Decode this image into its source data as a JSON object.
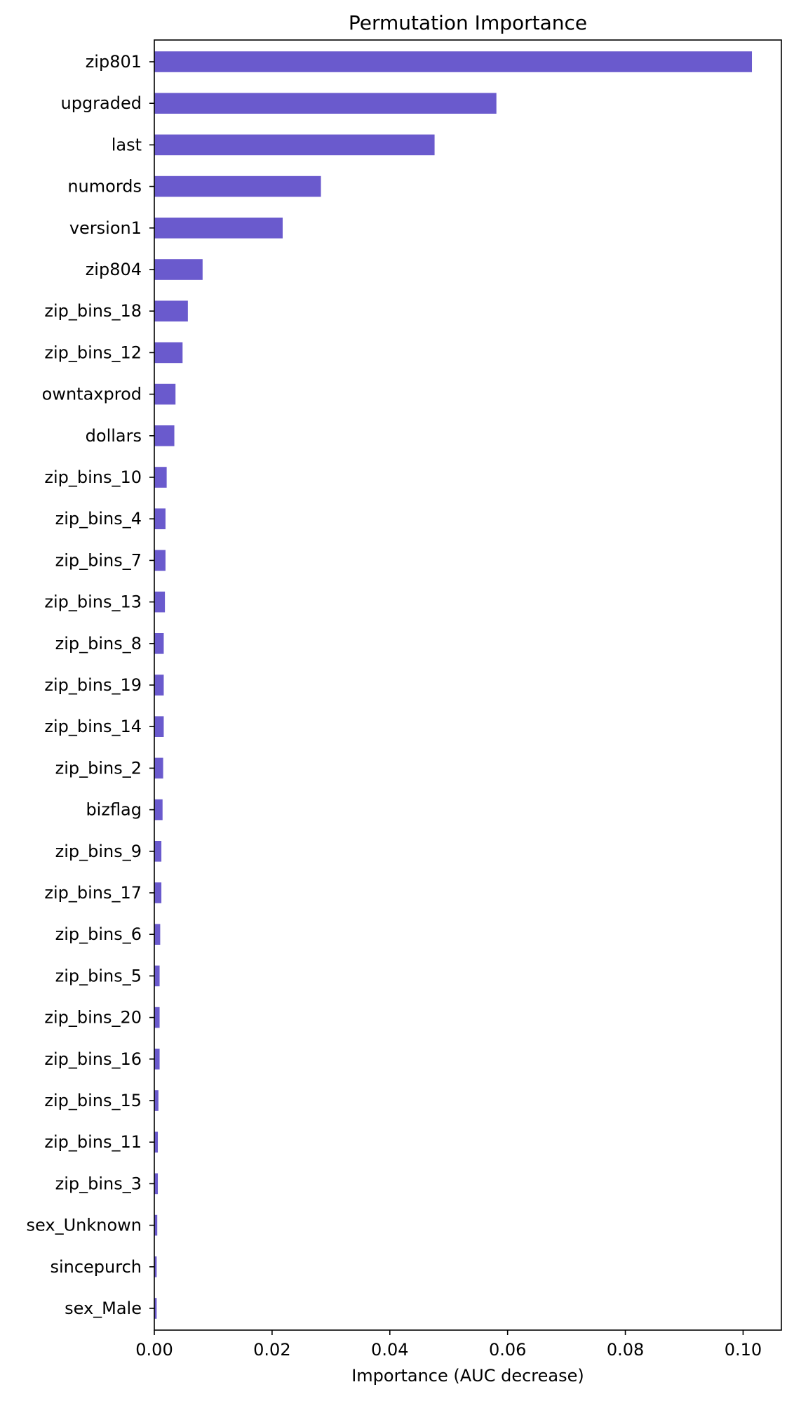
{
  "chart_data": {
    "type": "bar",
    "orientation": "horizontal",
    "title": "Permutation Importance",
    "xlabel": "Importance (AUC decrease)",
    "ylabel": "",
    "xlim": [
      0,
      0.1065
    ],
    "xticks": [
      0.0,
      0.02,
      0.04,
      0.06,
      0.08,
      0.1
    ],
    "xtick_labels": [
      "0.00",
      "0.02",
      "0.04",
      "0.06",
      "0.08",
      "0.10"
    ],
    "grid": false,
    "bar_color": "#6a5acd",
    "categories": [
      "zip801",
      "upgraded",
      "last",
      "numords",
      "version1",
      "zip804",
      "zip_bins_18",
      "zip_bins_12",
      "owntaxprod",
      "dollars",
      "zip_bins_10",
      "zip_bins_4",
      "zip_bins_7",
      "zip_bins_13",
      "zip_bins_8",
      "zip_bins_19",
      "zip_bins_14",
      "zip_bins_2",
      "bizflag",
      "zip_bins_9",
      "zip_bins_17",
      "zip_bins_6",
      "zip_bins_5",
      "zip_bins_20",
      "zip_bins_16",
      "zip_bins_15",
      "zip_bins_11",
      "zip_bins_3",
      "sex_Unknown",
      "sincepurch",
      "sex_Male"
    ],
    "values": [
      0.1015,
      0.0581,
      0.0476,
      0.0283,
      0.0218,
      0.0082,
      0.0057,
      0.0048,
      0.0036,
      0.0034,
      0.0021,
      0.0019,
      0.0019,
      0.0018,
      0.0016,
      0.0016,
      0.0016,
      0.0015,
      0.0014,
      0.0012,
      0.0012,
      0.001,
      0.0009,
      0.0009,
      0.0009,
      0.0007,
      0.0006,
      0.0006,
      0.0005,
      0.0004,
      0.0004
    ]
  }
}
